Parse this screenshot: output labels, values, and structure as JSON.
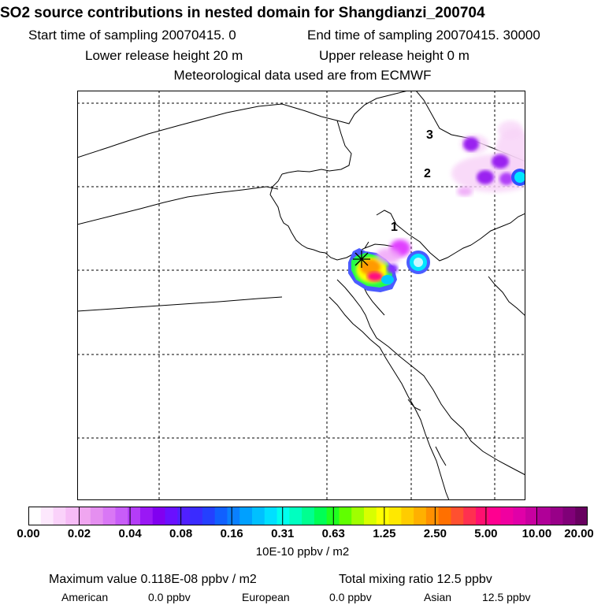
{
  "header": {
    "title": "SO2 source contributions in nested domain for Shangdianzi_200704",
    "start_label": "Start time of sampling 20070415.     0",
    "end_label": "End time of sampling 20070415. 30000",
    "lower_label": "Lower release height   20 m",
    "upper_label": "Upper release height    0 m",
    "met_label": "Meteorological data used are from ECMWF"
  },
  "map": {
    "labels": [
      "1",
      "2",
      "3"
    ]
  },
  "colorbar": {
    "tick_labels": [
      "0.00",
      "0.02",
      "0.04",
      "0.08",
      "0.16",
      "0.31",
      "0.63",
      "1.25",
      "2.50",
      "5.00",
      "10.00",
      "20.00"
    ],
    "units": "10E-10 ppbv / m2",
    "colors": [
      "#ffffff",
      "#fde8fd",
      "#fad2fa",
      "#f6bcf6",
      "#f0a6f0",
      "#e58ff0",
      "#d977f5",
      "#c85df8",
      "#b43cf8",
      "#9a18f5",
      "#8100f0",
      "#6a10ff",
      "#5020ff",
      "#3a2bff",
      "#2440ff",
      "#1060ff",
      "#0a80ff",
      "#00a0ff",
      "#00c0ff",
      "#00e0ff",
      "#00ffee",
      "#00ffc0",
      "#00ff90",
      "#00ff55",
      "#20ff20",
      "#60ff00",
      "#a0ff00",
      "#d8ff00",
      "#ffff00",
      "#ffe800",
      "#ffcc00",
      "#ffb000",
      "#ff9000",
      "#ff7000",
      "#ff5030",
      "#ff3050",
      "#ff1070",
      "#ff0090",
      "#f000a0",
      "#e000a8",
      "#c800a0",
      "#b00098",
      "#980088",
      "#800078",
      "#680060"
    ]
  },
  "footer": {
    "max_value": "Maximum value  0.118E-08 ppbv / m2",
    "total_mixing": "Total mixing ratio     12.5 ppbv",
    "american_label": "American",
    "american_value": "0.0 ppbv",
    "european_label": "European",
    "european_value": "0.0 ppbv",
    "asian_label": "Asian",
    "asian_value": "12.5 ppbv"
  }
}
